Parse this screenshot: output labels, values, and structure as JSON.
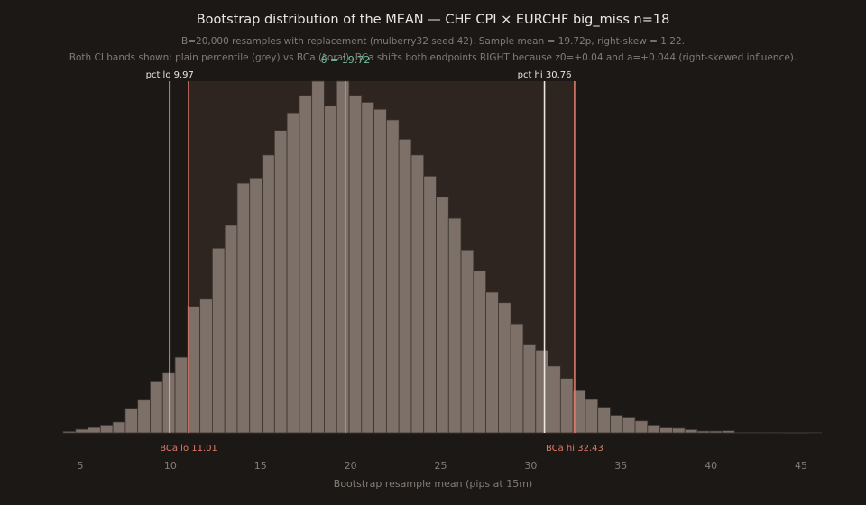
{
  "chart_data": {
    "type": "bar",
    "title": "Bootstrap distribution of the MEAN — CHF CPI × EURCHF big_miss n=18",
    "subtitle_lines": [
      "B=20,000 resamples with replacement (mulberry32 seed 42). Sample mean = 19.72p, right-skew = 1.22.",
      "Both CI bands shown: plain percentile (grey) vs BCa (coral). BCa shifts both endpoints RIGHT because z0=+0.04 and a=+0.044 (right-skewed influence)."
    ],
    "xlabel": "Bootstrap resample mean (pips at 15m)",
    "ylabel": "",
    "xlim": [
      4.05,
      45.5
    ],
    "x_ticks": [
      5,
      10,
      15,
      20,
      25,
      30,
      35,
      40,
      45
    ],
    "bin_width": 0.69,
    "bin_start": 4.05,
    "counts": [
      0.4,
      1.0,
      1.5,
      2.2,
      3.1,
      7.0,
      9.3,
      14.5,
      17.0,
      21.5,
      36.0,
      38.0,
      52.5,
      59.0,
      71.0,
      72.5,
      79.0,
      86.0,
      91.0,
      96.0,
      100.0,
      93.0,
      100.0,
      96.0,
      94.0,
      92.0,
      89.0,
      83.5,
      79.0,
      73.0,
      67.0,
      61.0,
      52.0,
      46.0,
      40.0,
      37.0,
      31.0,
      25.0,
      23.5,
      19.0,
      15.5,
      12.0,
      9.5,
      7.3,
      5.0,
      4.5,
      3.4,
      2.2,
      1.4,
      1.3,
      0.9,
      0.5,
      0.5,
      0.6,
      0.1,
      0.1,
      0.1,
      0.1,
      0,
      0,
      0.1
    ],
    "mean_line": {
      "x": 19.72,
      "label": "θ̂ = 19.72",
      "color": "#6fbf9c"
    },
    "percentile_ci": {
      "lo": 9.97,
      "hi": 30.76,
      "lo_label": "pct lo 9.97",
      "hi_label": "pct hi 30.76",
      "color": "#ece6e0"
    },
    "bca_ci": {
      "lo": 11.01,
      "hi": 32.43,
      "lo_label": "BCa lo 11.01",
      "hi_label": "BCa hi 32.43",
      "color": "#e07a68",
      "band_color": "#2e2420"
    },
    "bar_color": "#7d7068",
    "bar_edge": "#3a322d",
    "grid": false,
    "legend": "none"
  }
}
